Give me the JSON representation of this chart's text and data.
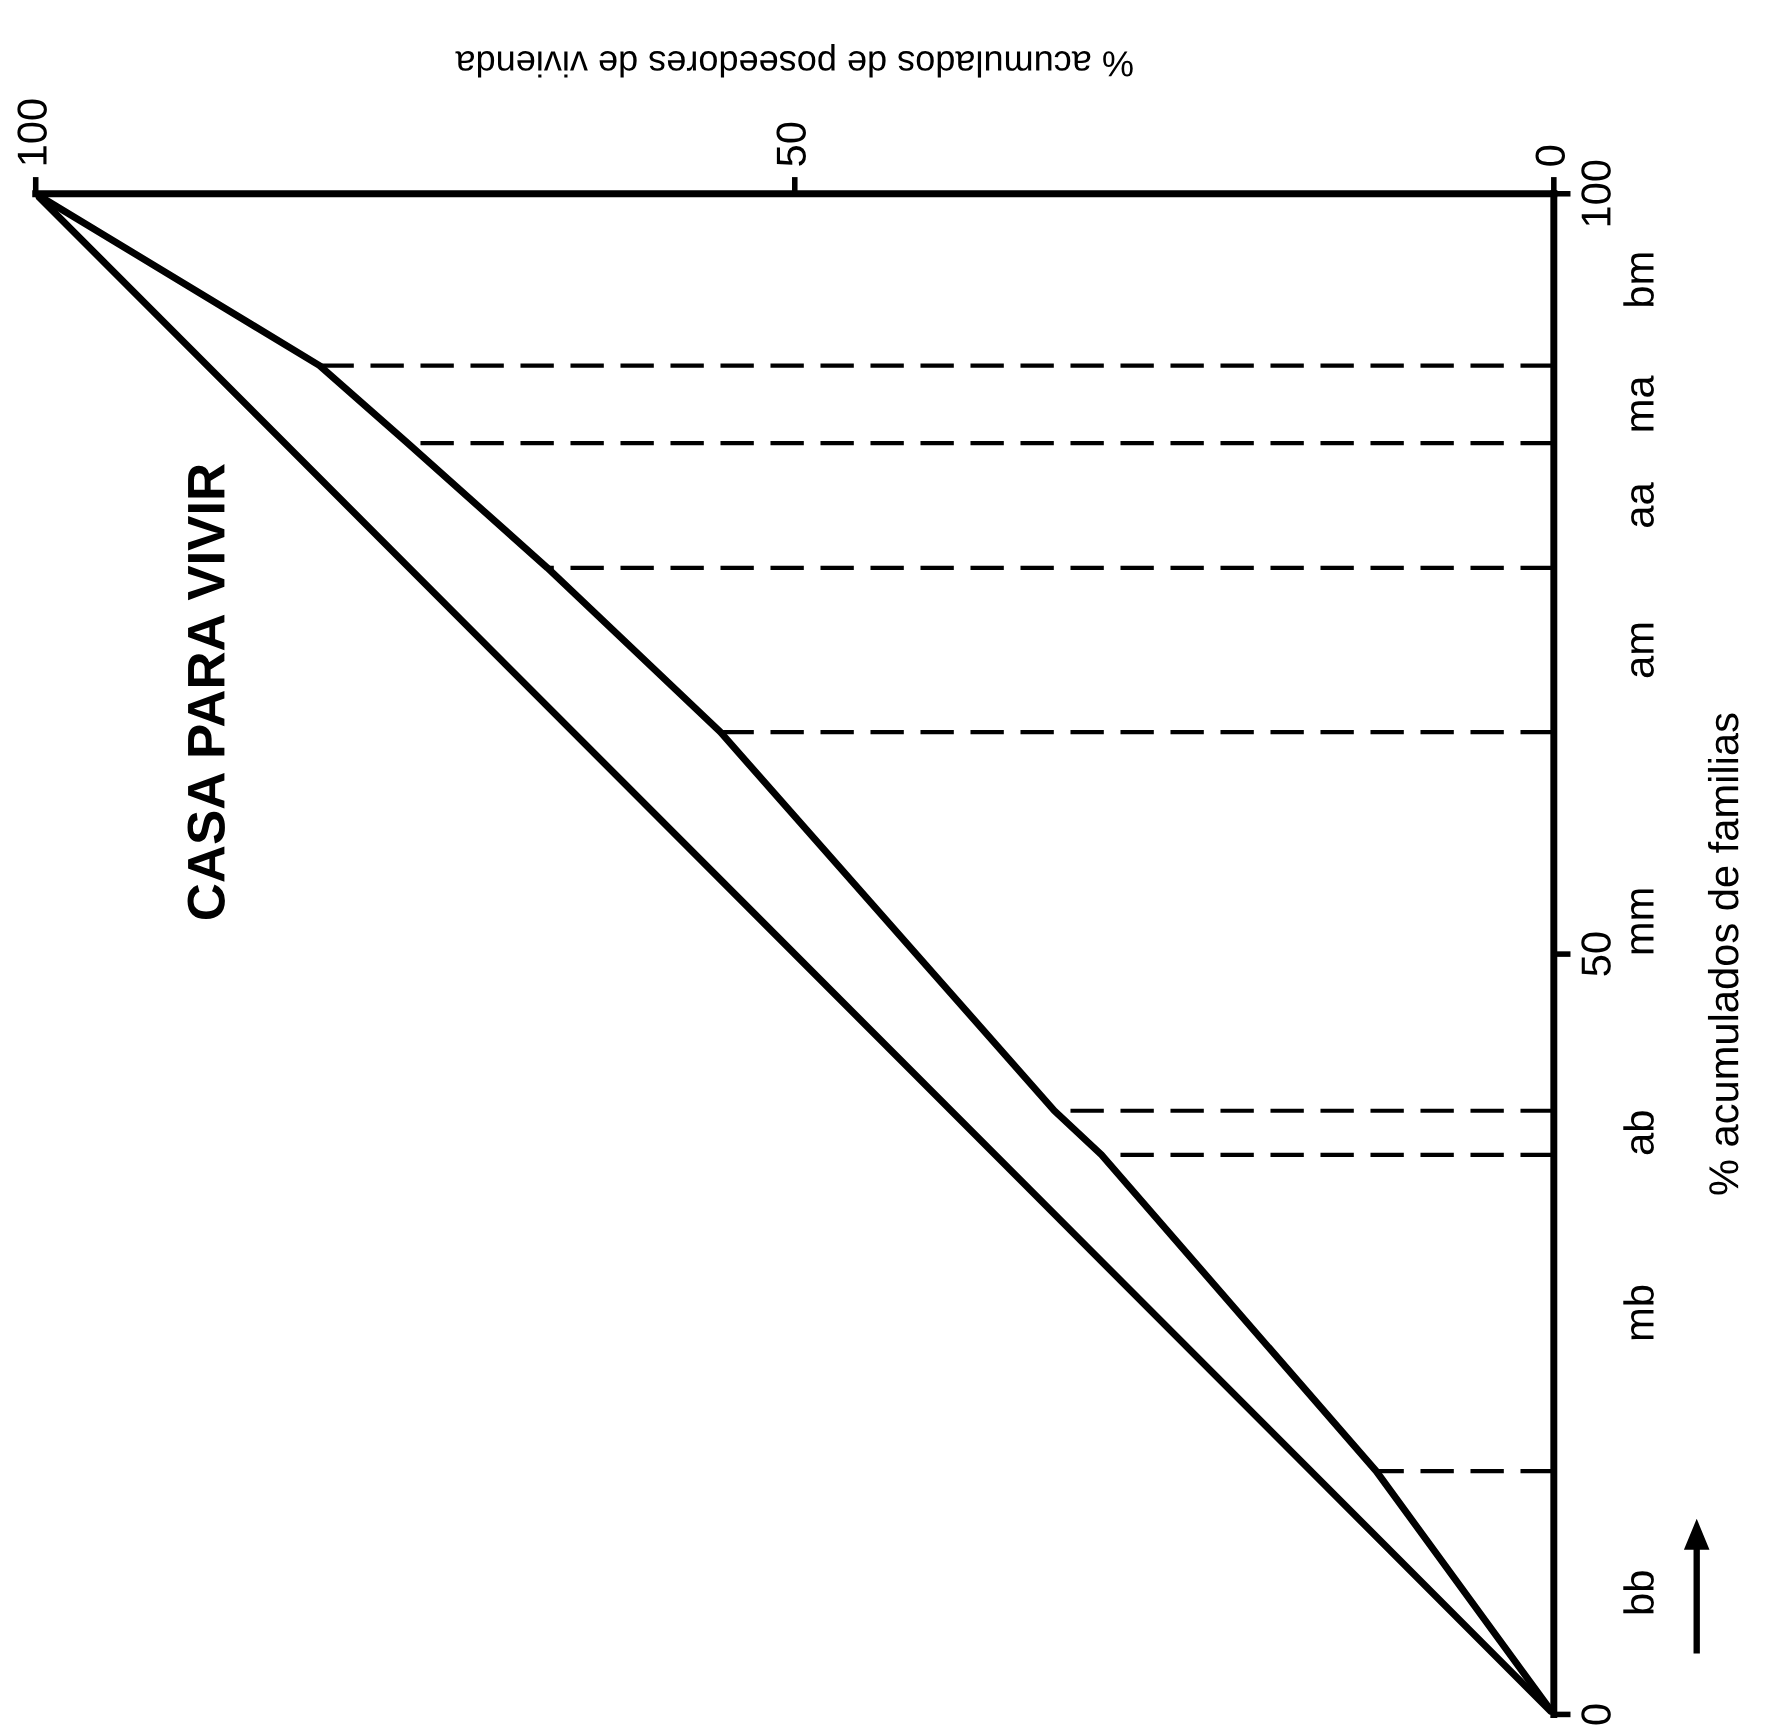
{
  "chart_data": {
    "type": "line",
    "title": "CASA PARA VIVIR",
    "xlabel": "% acumulados de poseedores de vivienda",
    "ylabel": "% acumulados de familias",
    "xlim": [
      100,
      0
    ],
    "ylim": [
      0,
      100
    ],
    "xticks": [
      100,
      50,
      0
    ],
    "yticks": [
      0,
      50,
      100
    ],
    "annotations": [
      "bb",
      "mb",
      "ab",
      "mm",
      "am",
      "aa",
      "ma",
      "bm"
    ],
    "grid": false,
    "marker": "none",
    "ref_lines": [
      {
        "axis": "y",
        "value": 100,
        "color": "#000000",
        "line_style": "solid"
      }
    ],
    "series": [
      {
        "x": [
          0,
          11.7,
          29.8,
          32.9,
          54.9,
          66.3,
          75.5,
          81.3,
          100
        ],
        "values": [
          0,
          16,
          36.8,
          39.7,
          64.6,
          75.4,
          83.6,
          88.7,
          100
        ],
        "color": "#000000",
        "line_style": "solid"
      },
      {
        "x": [
          0,
          100
        ],
        "values": [
          0,
          100
        ],
        "color": "#000000",
        "line_style": "solid"
      },
      {
        "x": [
          0,
          11.7
        ],
        "values": [
          16,
          16
        ],
        "color": "#000000",
        "line_style": "dashed"
      },
      {
        "x": [
          0,
          29.8
        ],
        "values": [
          36.8,
          36.8
        ],
        "color": "#000000",
        "line_style": "dashed"
      },
      {
        "x": [
          0,
          32.9
        ],
        "values": [
          39.7,
          39.7
        ],
        "color": "#000000",
        "line_style": "dashed"
      },
      {
        "x": [
          0,
          54.9
        ],
        "values": [
          64.6,
          64.6
        ],
        "color": "#000000",
        "line_style": "dashed"
      },
      {
        "x": [
          0,
          66.3
        ],
        "values": [
          75.4,
          75.4
        ],
        "color": "#000000",
        "line_style": "dashed"
      },
      {
        "x": [
          0,
          75.5
        ],
        "values": [
          83.6,
          83.6
        ],
        "color": "#000000",
        "line_style": "dashed"
      },
      {
        "x": [
          0,
          81.3
        ],
        "values": [
          88.7,
          88.7
        ],
        "color": "#000000",
        "line_style": "dashed"
      }
    ]
  }
}
